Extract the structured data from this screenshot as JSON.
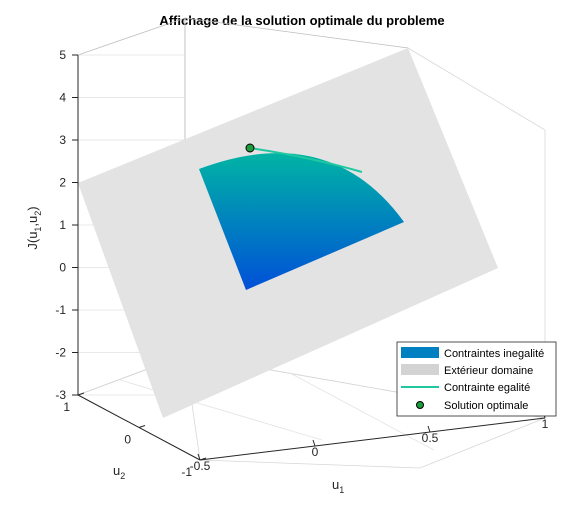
{
  "chart_data": {
    "type": "surface3d",
    "title": "Affichage de la solution optimale du probleme",
    "xlabel": "u",
    "xlabel_sub": "1",
    "ylabel": "u",
    "ylabel_sub": "2",
    "zlabel_parts": [
      "J(u",
      "1",
      ",u",
      "2",
      ")"
    ],
    "xlim": [
      -0.5,
      1
    ],
    "ylim": [
      -1,
      1
    ],
    "zlim": [
      -3,
      5
    ],
    "xticks": [
      "-0.5",
      "0",
      "0.5",
      "1"
    ],
    "yticks": [
      "-1",
      "0",
      "1"
    ],
    "zticks": [
      "-3",
      "-2",
      "-1",
      "0",
      "1",
      "2",
      "3",
      "4",
      "5"
    ],
    "grid": true,
    "legend_position": "bottom-right",
    "series": [
      {
        "name": "Contraintes inegalité",
        "kind": "surface",
        "color": "#0080c0"
      },
      {
        "name": "Extérieur domaine",
        "kind": "surface",
        "color": "#d3d3d3"
      },
      {
        "name": "Contrainte egalité",
        "kind": "line",
        "color": "#1fc8a0"
      },
      {
        "name": "Solution optimale",
        "kind": "point",
        "color": "#1b9d3b"
      }
    ],
    "colors": {
      "surface_top": "#00b4a4",
      "surface_bottom": "#0050d8",
      "plane": "#e3e3e3"
    }
  }
}
